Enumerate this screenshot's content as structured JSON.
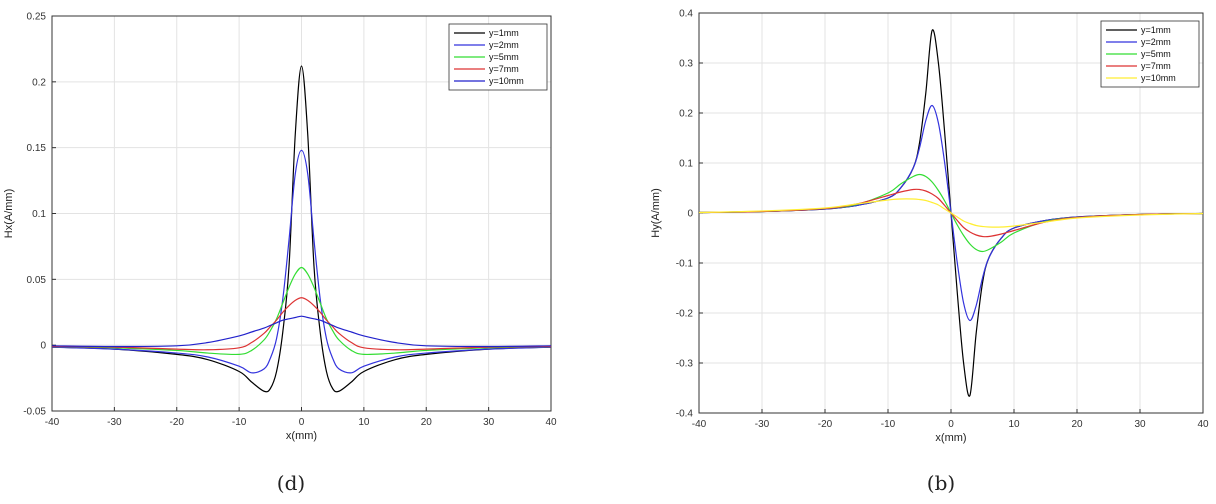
{
  "chart_data": [
    {
      "type": "line",
      "caption": "(d)",
      "xlabel": "x(mm)",
      "ylabel": "Hx(A/mm)",
      "xlim": [
        -40,
        40
      ],
      "ylim": [
        -0.05,
        0.25
      ],
      "xticks": [
        -40,
        -30,
        -20,
        -10,
        0,
        10,
        20,
        30,
        40
      ],
      "yticks": [
        -0.05,
        0,
        0.05,
        0.1,
        0.15,
        0.2,
        0.25
      ],
      "ytick_labels": [
        "-0.05",
        "0",
        "0.05",
        "0.1",
        "0.15",
        "0.2",
        "0.25"
      ],
      "grid": true,
      "legend_position": "top-right",
      "x": [
        -40,
        -30,
        -20,
        -15,
        -10,
        -8,
        -6,
        -5,
        -4,
        -3,
        -2,
        -1,
        0,
        1,
        2,
        3,
        4,
        5,
        6,
        8,
        10,
        15,
        20,
        30,
        40
      ],
      "series": [
        {
          "name": "y=1mm",
          "color": "#000000",
          "values": [
            -0.0015,
            -0.003,
            -0.007,
            -0.011,
            -0.02,
            -0.028,
            -0.035,
            -0.033,
            -0.02,
            0.01,
            0.06,
            0.16,
            0.212,
            0.16,
            0.06,
            0.01,
            -0.02,
            -0.033,
            -0.035,
            -0.028,
            -0.02,
            -0.011,
            -0.007,
            -0.003,
            -0.0015
          ]
        },
        {
          "name": "y=2mm",
          "color": "#3333dd",
          "values": [
            -0.0015,
            -0.003,
            -0.006,
            -0.009,
            -0.016,
            -0.021,
            -0.018,
            -0.01,
            0.005,
            0.035,
            0.08,
            0.13,
            0.148,
            0.13,
            0.08,
            0.035,
            0.005,
            -0.01,
            -0.018,
            -0.021,
            -0.016,
            -0.009,
            -0.006,
            -0.003,
            -0.0015
          ]
        },
        {
          "name": "y=5mm",
          "color": "#33dd33",
          "values": [
            -0.001,
            -0.002,
            -0.004,
            -0.006,
            -0.007,
            -0.004,
            0.004,
            0.011,
            0.02,
            0.032,
            0.044,
            0.054,
            0.059,
            0.054,
            0.044,
            0.032,
            0.02,
            0.011,
            0.004,
            -0.004,
            -0.007,
            -0.006,
            -0.004,
            -0.002,
            -0.001
          ]
        },
        {
          "name": "y=7mm",
          "color": "#dd3333",
          "values": [
            -0.001,
            -0.0015,
            -0.003,
            -0.0035,
            -0.002,
            0.002,
            0.009,
            0.014,
            0.019,
            0.025,
            0.03,
            0.034,
            0.036,
            0.034,
            0.03,
            0.025,
            0.019,
            0.014,
            0.009,
            0.002,
            -0.002,
            -0.0035,
            -0.003,
            -0.0015,
            -0.001
          ]
        },
        {
          "name": "y=10mm",
          "color": "#2222cc",
          "values": [
            -0.0005,
            -0.001,
            -0.0005,
            0.002,
            0.007,
            0.01,
            0.013,
            0.015,
            0.017,
            0.019,
            0.02,
            0.021,
            0.022,
            0.021,
            0.02,
            0.019,
            0.017,
            0.015,
            0.013,
            0.01,
            0.007,
            0.002,
            -0.0005,
            -0.001,
            -0.0005
          ]
        }
      ]
    },
    {
      "type": "line",
      "caption": "(b)",
      "xlabel": "x(mm)",
      "ylabel": "Hy(A/mm)",
      "xlim": [
        -40,
        40
      ],
      "ylim": [
        -0.4,
        0.4
      ],
      "xticks": [
        -40,
        -30,
        -20,
        -10,
        0,
        10,
        20,
        30,
        40
      ],
      "yticks": [
        -0.4,
        -0.3,
        -0.2,
        -0.1,
        0,
        0.1,
        0.2,
        0.3,
        0.4
      ],
      "ytick_labels": [
        "-0.4",
        "-0.3",
        "-0.2",
        "-0.1",
        "0",
        "0.1",
        "0.2",
        "0.3",
        "0.4"
      ],
      "grid": true,
      "legend_position": "top-right",
      "x": [
        -40,
        -30,
        -20,
        -15,
        -10,
        -8,
        -6,
        -5,
        -4,
        -3,
        -2,
        -1,
        0,
        1,
        2,
        3,
        4,
        5,
        6,
        8,
        10,
        15,
        20,
        30,
        40
      ],
      "series": [
        {
          "name": "y=1mm",
          "color": "#000000",
          "values": [
            0.001,
            0.003,
            0.008,
            0.015,
            0.03,
            0.05,
            0.09,
            0.14,
            0.24,
            0.365,
            0.3,
            0.16,
            0,
            -0.16,
            -0.3,
            -0.365,
            -0.24,
            -0.14,
            -0.09,
            -0.05,
            -0.03,
            -0.015,
            -0.008,
            -0.003,
            -0.001
          ]
        },
        {
          "name": "y=2mm",
          "color": "#3333dd",
          "values": [
            0.001,
            0.003,
            0.008,
            0.015,
            0.03,
            0.05,
            0.09,
            0.13,
            0.185,
            0.215,
            0.18,
            0.1,
            0,
            -0.1,
            -0.18,
            -0.215,
            -0.185,
            -0.13,
            -0.09,
            -0.05,
            -0.03,
            -0.015,
            -0.008,
            -0.003,
            -0.001
          ]
        },
        {
          "name": "y=5mm",
          "color": "#33dd33",
          "values": [
            0.001,
            0.003,
            0.009,
            0.017,
            0.04,
            0.058,
            0.073,
            0.077,
            0.073,
            0.062,
            0.045,
            0.024,
            0,
            -0.024,
            -0.045,
            -0.062,
            -0.073,
            -0.077,
            -0.073,
            -0.058,
            -0.04,
            -0.017,
            -0.009,
            -0.003,
            -0.001
          ]
        },
        {
          "name": "y=7mm",
          "color": "#dd3333",
          "values": [
            0.001,
            0.003,
            0.009,
            0.018,
            0.035,
            0.042,
            0.047,
            0.047,
            0.044,
            0.038,
            0.029,
            0.015,
            0,
            -0.015,
            -0.029,
            -0.038,
            -0.044,
            -0.047,
            -0.047,
            -0.042,
            -0.035,
            -0.018,
            -0.009,
            -0.003,
            -0.001
          ]
        },
        {
          "name": "y=10mm",
          "color": "#ffee33",
          "values": [
            0.001,
            0.004,
            0.01,
            0.018,
            0.026,
            0.028,
            0.028,
            0.027,
            0.025,
            0.021,
            0.016,
            0.008,
            0,
            -0.008,
            -0.016,
            -0.021,
            -0.025,
            -0.027,
            -0.028,
            -0.028,
            -0.026,
            -0.018,
            -0.01,
            -0.004,
            -0.001
          ]
        }
      ]
    }
  ]
}
